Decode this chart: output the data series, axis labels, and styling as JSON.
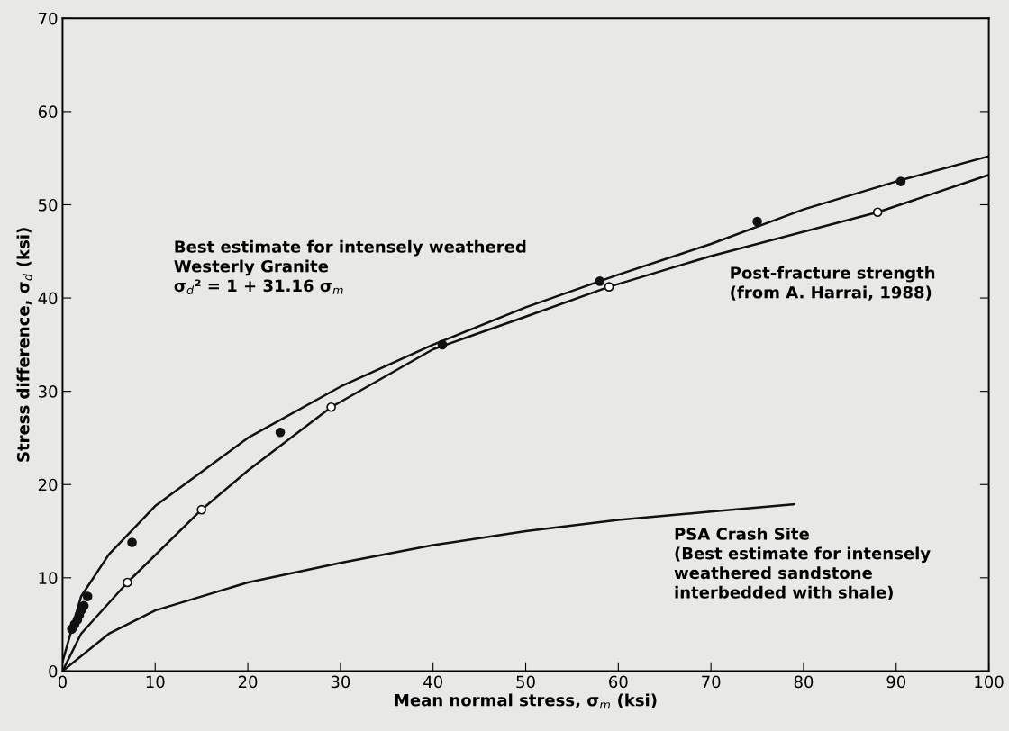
{
  "chart_data": {
    "type": "line",
    "xlabel": "Mean normal stress, σ$_{m}$ (ksi)",
    "ylabel": "Stress difference, σ$_{d}$ (ksi)",
    "xlim": [
      0,
      100
    ],
    "ylim": [
      0,
      70
    ],
    "xticks": [
      0,
      10,
      20,
      30,
      40,
      50,
      60,
      70,
      80,
      90,
      100
    ],
    "yticks": [
      0,
      10,
      20,
      30,
      40,
      50,
      60,
      70
    ],
    "grid": false,
    "line_style": "solid",
    "series": [
      {
        "color": "#111111",
        "x": [
          0,
          2,
          5,
          10,
          20,
          30,
          40,
          50,
          60,
          70,
          80,
          90,
          100
        ],
        "values": [
          1,
          8,
          12.5,
          17.7,
          25,
          30.5,
          35,
          39,
          42.5,
          45.8,
          49.5,
          52.5,
          55.2
        ]
      },
      {
        "color": "#111111",
        "x": [
          0,
          2,
          7,
          15,
          20,
          29,
          40,
          50,
          59,
          70,
          88,
          100
        ],
        "values": [
          0,
          4,
          9.5,
          17.3,
          21.5,
          28.3,
          34.5,
          38,
          41.2,
          44.5,
          49.2,
          53.2
        ]
      },
      {
        "color": "#111111",
        "x": [
          0,
          5,
          10,
          20,
          30,
          40,
          50,
          60,
          70,
          79
        ],
        "values": [
          0,
          4,
          6.5,
          9.5,
          11.6,
          13.5,
          15,
          16.2,
          17.1,
          17.9
        ]
      },
      {
        "type": "scatter",
        "marker": "circle",
        "color": "#111111",
        "x": [
          1,
          1.3,
          1.6,
          1.8,
          2,
          2.3,
          2.7,
          7.5,
          23.5,
          41,
          58,
          75,
          90.5
        ],
        "values": [
          4.5,
          5,
          5.5,
          6,
          6.5,
          7,
          8,
          13.8,
          25.6,
          35,
          41.8,
          48.2,
          52.5
        ]
      },
      {
        "type": "scatter",
        "marker": "circle",
        "color": "#ffffff",
        "x": [
          7,
          15,
          29,
          59,
          88
        ],
        "values": [
          9.5,
          17.3,
          28.3,
          41.2,
          49.2
        ]
      }
    ],
    "annotations": [
      "Best estimate for intensely weathered\nWesterly Granite\nσ$_{d}$² = 1 + 31.16 σ$_{m}$",
      "Post-fracture strength\n(from A. Harrai, 1988)",
      "PSA Crash Site\n(Best estimate for intensely\nweathered sandstone\ninterbedded with shale)"
    ]
  }
}
